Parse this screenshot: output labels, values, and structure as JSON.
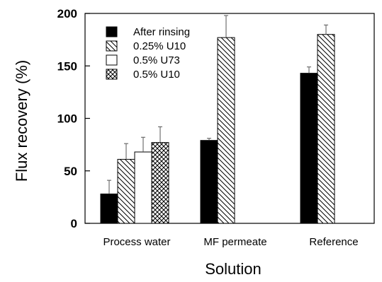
{
  "chart_data": {
    "type": "bar",
    "title": "",
    "xlabel": "Solution",
    "ylabel": "Flux recovery (%)",
    "ylim": [
      0,
      200
    ],
    "yticks": [
      0,
      50,
      100,
      150,
      200
    ],
    "categories": [
      "Process water",
      "MF permeate",
      "Reference"
    ],
    "legend_position": "top-left",
    "grid": false,
    "series": [
      {
        "name": "After rinsing",
        "pattern": "solid-black",
        "values": [
          28,
          79,
          143
        ],
        "errors": [
          13,
          2,
          6
        ]
      },
      {
        "name": "0.25% U10",
        "pattern": "diagonal-hatch",
        "values": [
          61,
          177,
          180
        ],
        "errors": [
          15,
          21,
          9
        ]
      },
      {
        "name": "0.5% U73",
        "pattern": "open-white",
        "values": [
          68,
          null,
          null
        ],
        "errors": [
          14,
          null,
          null
        ]
      },
      {
        "name": "0.5% U10",
        "pattern": "cross-hatch",
        "values": [
          77,
          null,
          null
        ],
        "errors": [
          15,
          null,
          null
        ]
      }
    ]
  },
  "colors": {
    "ink": "#000000",
    "background": "#ffffff"
  }
}
